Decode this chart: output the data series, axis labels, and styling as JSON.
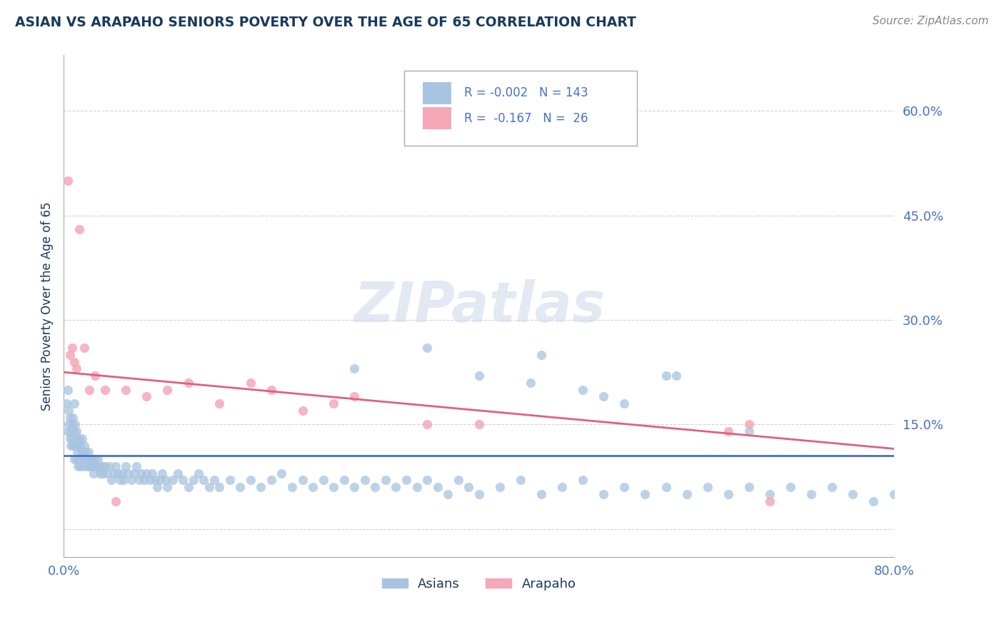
{
  "title": "ASIAN VS ARAPAHO SENIORS POVERTY OVER THE AGE OF 65 CORRELATION CHART",
  "source_text": "Source: ZipAtlas.com",
  "ylabel": "Seniors Poverty Over the Age of 65",
  "xlim": [
    0.0,
    0.8
  ],
  "ylim": [
    -0.04,
    0.68
  ],
  "yticks": [
    0.0,
    0.15,
    0.3,
    0.45,
    0.6
  ],
  "ytick_labels": [
    "",
    "15.0%",
    "30.0%",
    "45.0%",
    "60.0%"
  ],
  "xticks": [
    0.0,
    0.1,
    0.2,
    0.3,
    0.4,
    0.5,
    0.6,
    0.7,
    0.8
  ],
  "xtick_labels": [
    "0.0%",
    "",
    "",
    "",
    "",
    "",
    "",
    "",
    "80.0%"
  ],
  "asian_color": "#a8c4e0",
  "arapaho_color": "#f4a8b8",
  "asian_line_color": "#4472c4",
  "arapaho_line_color": "#e06080",
  "legend_R_asian": "-0.002",
  "legend_N_asian": "143",
  "legend_R_arapaho": "-0.167",
  "legend_N_arapaho": "26",
  "watermark": "ZIPatlas",
  "title_color": "#1a3a5c",
  "axis_label_color": "#1a3a5c",
  "tick_color": "#4472c4",
  "asian_line_y": [
    0.105,
    0.105
  ],
  "arapaho_line_y": [
    0.225,
    0.115
  ],
  "asian_x": [
    0.003,
    0.004,
    0.004,
    0.005,
    0.005,
    0.006,
    0.006,
    0.007,
    0.007,
    0.008,
    0.008,
    0.009,
    0.009,
    0.01,
    0.01,
    0.01,
    0.011,
    0.011,
    0.012,
    0.012,
    0.013,
    0.013,
    0.014,
    0.014,
    0.015,
    0.015,
    0.016,
    0.016,
    0.017,
    0.018,
    0.018,
    0.019,
    0.02,
    0.02,
    0.021,
    0.022,
    0.023,
    0.024,
    0.025,
    0.026,
    0.027,
    0.028,
    0.029,
    0.03,
    0.031,
    0.033,
    0.034,
    0.035,
    0.037,
    0.038,
    0.04,
    0.042,
    0.044,
    0.046,
    0.048,
    0.05,
    0.052,
    0.054,
    0.056,
    0.058,
    0.06,
    0.062,
    0.065,
    0.068,
    0.07,
    0.073,
    0.075,
    0.078,
    0.08,
    0.083,
    0.085,
    0.088,
    0.09,
    0.093,
    0.095,
    0.098,
    0.1,
    0.105,
    0.11,
    0.115,
    0.12,
    0.125,
    0.13,
    0.135,
    0.14,
    0.145,
    0.15,
    0.16,
    0.17,
    0.18,
    0.19,
    0.2,
    0.21,
    0.22,
    0.23,
    0.24,
    0.25,
    0.26,
    0.27,
    0.28,
    0.29,
    0.3,
    0.31,
    0.32,
    0.33,
    0.34,
    0.35,
    0.36,
    0.37,
    0.38,
    0.39,
    0.4,
    0.42,
    0.44,
    0.46,
    0.48,
    0.5,
    0.52,
    0.54,
    0.56,
    0.58,
    0.6,
    0.62,
    0.64,
    0.66,
    0.68,
    0.7,
    0.72,
    0.74,
    0.76,
    0.78,
    0.8,
    0.59,
    0.66,
    0.46,
    0.28,
    0.35,
    0.4,
    0.45,
    0.5,
    0.52,
    0.54,
    0.58
  ],
  "asian_y": [
    0.18,
    0.2,
    0.14,
    0.15,
    0.17,
    0.13,
    0.16,
    0.14,
    0.12,
    0.15,
    0.13,
    0.16,
    0.12,
    0.18,
    0.14,
    0.1,
    0.15,
    0.12,
    0.14,
    0.1,
    0.13,
    0.11,
    0.12,
    0.09,
    0.13,
    0.1,
    0.12,
    0.09,
    0.11,
    0.13,
    0.1,
    0.11,
    0.12,
    0.09,
    0.11,
    0.1,
    0.09,
    0.11,
    0.1,
    0.09,
    0.1,
    0.09,
    0.08,
    0.1,
    0.09,
    0.1,
    0.09,
    0.08,
    0.09,
    0.08,
    0.09,
    0.08,
    0.09,
    0.07,
    0.08,
    0.09,
    0.08,
    0.07,
    0.08,
    0.07,
    0.09,
    0.08,
    0.07,
    0.08,
    0.09,
    0.07,
    0.08,
    0.07,
    0.08,
    0.07,
    0.08,
    0.07,
    0.06,
    0.07,
    0.08,
    0.07,
    0.06,
    0.07,
    0.08,
    0.07,
    0.06,
    0.07,
    0.08,
    0.07,
    0.06,
    0.07,
    0.06,
    0.07,
    0.06,
    0.07,
    0.06,
    0.07,
    0.08,
    0.06,
    0.07,
    0.06,
    0.07,
    0.06,
    0.07,
    0.06,
    0.07,
    0.06,
    0.07,
    0.06,
    0.07,
    0.06,
    0.07,
    0.06,
    0.05,
    0.07,
    0.06,
    0.05,
    0.06,
    0.07,
    0.05,
    0.06,
    0.07,
    0.05,
    0.06,
    0.05,
    0.06,
    0.05,
    0.06,
    0.05,
    0.06,
    0.05,
    0.06,
    0.05,
    0.06,
    0.05,
    0.04,
    0.05,
    0.22,
    0.14,
    0.25,
    0.23,
    0.26,
    0.22,
    0.21,
    0.2,
    0.19,
    0.18,
    0.22
  ],
  "arapaho_x": [
    0.004,
    0.006,
    0.008,
    0.01,
    0.012,
    0.015,
    0.02,
    0.025,
    0.03,
    0.04,
    0.05,
    0.06,
    0.08,
    0.1,
    0.12,
    0.15,
    0.18,
    0.2,
    0.23,
    0.26,
    0.28,
    0.35,
    0.4,
    0.64,
    0.66,
    0.68
  ],
  "arapaho_y": [
    0.5,
    0.25,
    0.26,
    0.24,
    0.23,
    0.43,
    0.26,
    0.2,
    0.22,
    0.2,
    0.04,
    0.2,
    0.19,
    0.2,
    0.21,
    0.18,
    0.21,
    0.2,
    0.17,
    0.18,
    0.19,
    0.15,
    0.15,
    0.14,
    0.15,
    0.04
  ]
}
